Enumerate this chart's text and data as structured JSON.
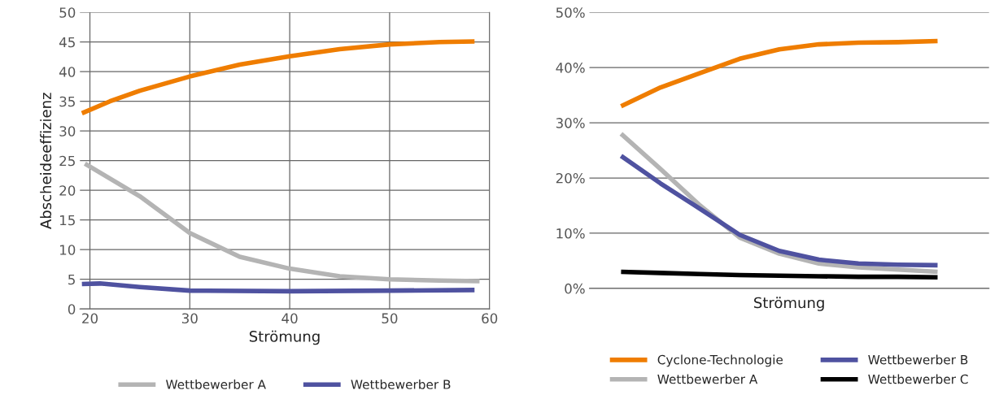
{
  "chart_data": [
    {
      "type": "line",
      "xlabel": "Strömung",
      "ylabel": "Abscheideeffizienz",
      "xlim": [
        19,
        60
      ],
      "xticks": [
        20,
        30,
        40,
        50,
        60
      ],
      "ylim": [
        0,
        50
      ],
      "yticks": [
        0,
        5,
        10,
        15,
        20,
        25,
        30,
        35,
        40,
        45,
        50
      ],
      "grid": true,
      "legend": "bottom",
      "series": [
        {
          "color": "#ef7d00",
          "x": [
            19.2,
            22,
            25,
            30,
            35,
            40,
            45,
            50,
            55,
            58.5
          ],
          "values": [
            33,
            35,
            36.8,
            39.2,
            41.2,
            42.6,
            43.8,
            44.6,
            45,
            45.1
          ]
        },
        {
          "name": "Wettbewerber A",
          "color": "#b4b4b4",
          "x": [
            19.5,
            25,
            30,
            35,
            40,
            45,
            50,
            55,
            59
          ],
          "values": [
            24.5,
            19,
            12.8,
            8.8,
            6.8,
            5.5,
            5,
            4.8,
            4.7
          ]
        },
        {
          "name": "Wettbewerber B",
          "color": "#4f52a0",
          "x": [
            19.2,
            21,
            25,
            30,
            40,
            50,
            58.5
          ],
          "values": [
            4.2,
            4.3,
            3.7,
            3.1,
            3,
            3.1,
            3.2
          ]
        }
      ]
    },
    {
      "type": "line",
      "xlabel": "Strömung",
      "categories": [
        null,
        null,
        null,
        null,
        null,
        null,
        null,
        null,
        null
      ],
      "ylim": [
        0,
        50
      ],
      "yticks": [
        {
          "value": 0,
          "label": "0%"
        },
        {
          "value": 10,
          "label": "10%"
        },
        {
          "value": 20,
          "label": "20%"
        },
        {
          "value": 30,
          "label": "30%"
        },
        {
          "value": 40,
          "label": "40%"
        },
        {
          "value": 50,
          "label": "50%"
        }
      ],
      "grid": "y",
      "legend": "bottom",
      "series": [
        {
          "name": "Cyclone-Technologie",
          "color": "#ef7d00",
          "values": [
            33,
            36.4,
            39,
            41.6,
            43.3,
            44.2,
            44.5,
            44.6,
            44.8
          ]
        },
        {
          "name": "Wettbewerber A",
          "color": "#b4b4b4",
          "values": [
            28,
            21.6,
            15,
            9.2,
            6.3,
            4.5,
            3.8,
            3.4,
            3
          ]
        },
        {
          "name": "Wettbewerber B",
          "color": "#4f52a0",
          "values": [
            24,
            19,
            14.4,
            9.7,
            6.8,
            5.2,
            4.5,
            4.3,
            4.2
          ]
        },
        {
          "name": "Wettbewerber C",
          "color": "#000000",
          "values": [
            3,
            2.8,
            2.6,
            2.4,
            2.3,
            2.2,
            2.1,
            2.1,
            2
          ]
        }
      ]
    }
  ]
}
